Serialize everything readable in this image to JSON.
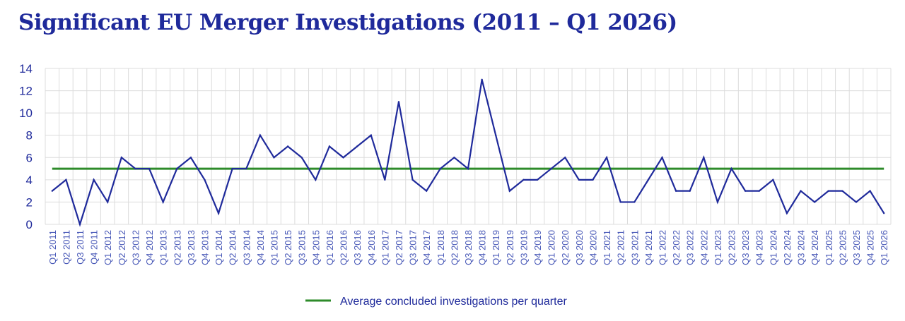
{
  "chart_data": {
    "type": "line",
    "title": "Significant EU Merger Investigations (2011 – Q1 2026)",
    "xlabel": "",
    "ylabel": "",
    "ylim": [
      0,
      14
    ],
    "yticks": [
      0,
      2,
      4,
      6,
      8,
      10,
      12,
      14
    ],
    "grid": true,
    "legend_position": "bottom-center",
    "categories": [
      "Q1 2011",
      "Q2 2011",
      "Q3 2011",
      "Q4 2011",
      "Q1 2012",
      "Q2 2012",
      "Q3 2012",
      "Q4 2012",
      "Q1 2013",
      "Q2 2013",
      "Q3 2013",
      "Q4 2013",
      "Q1 2014",
      "Q2 2014",
      "Q3 2014",
      "Q4 2014",
      "Q1 2015",
      "Q2 2015",
      "Q3 2015",
      "Q4 2015",
      "Q1 2016",
      "Q2 2016",
      "Q3 2016",
      "Q4 2016",
      "Q1 2017",
      "Q2 2017",
      "Q3 2017",
      "Q4 2017",
      "Q1 2018",
      "Q2 2018",
      "Q3 2018",
      "Q4 2018",
      "Q1 2019",
      "Q2 2019",
      "Q3 2019",
      "Q4 2019",
      "Q1 2020",
      "Q2 2020",
      "Q3 2020",
      "Q4 2020",
      "Q1 2021",
      "Q2 2021",
      "Q3 2021",
      "Q4 2021",
      "Q1 2022",
      "Q2 2022",
      "Q3 2022",
      "Q4 2022",
      "Q1 2023",
      "Q2 2023",
      "Q3 2023",
      "Q4 2023",
      "Q1 2024",
      "Q2 2024",
      "Q3 2024",
      "Q4 2024",
      "Q1 2025",
      "Q2 2025",
      "Q3 2025",
      "Q4 2025",
      "Q1 2026"
    ],
    "series": [
      {
        "name": "",
        "color": "#1f2a9b",
        "values": [
          3,
          4,
          0,
          4,
          2,
          6,
          5,
          5,
          2,
          5,
          6,
          4,
          1,
          5,
          5,
          8,
          6,
          7,
          6,
          4,
          7,
          6,
          7,
          8,
          4,
          11,
          4,
          3,
          5,
          6,
          5,
          13,
          8,
          3,
          4,
          4,
          5,
          6,
          4,
          4,
          6,
          2,
          2,
          4,
          6,
          3,
          3,
          6,
          2,
          5,
          3,
          3,
          4,
          1,
          3,
          2,
          3,
          3,
          2,
          3,
          1
        ]
      },
      {
        "name": "Average concluded investigations per quarter",
        "color": "#2e8b2a",
        "constant": 5
      }
    ]
  }
}
